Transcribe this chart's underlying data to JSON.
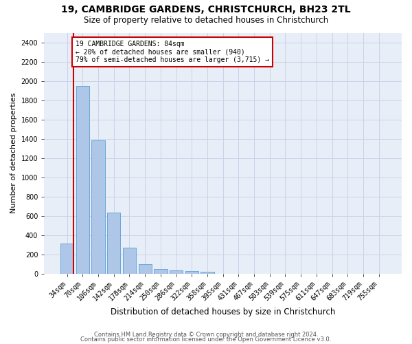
{
  "title1": "19, CAMBRIDGE GARDENS, CHRISTCHURCH, BH23 2TL",
  "title2": "Size of property relative to detached houses in Christchurch",
  "xlabel": "Distribution of detached houses by size in Christchurch",
  "ylabel": "Number of detached properties",
  "categories": [
    "34sqm",
    "70sqm",
    "106sqm",
    "142sqm",
    "178sqm",
    "214sqm",
    "250sqm",
    "286sqm",
    "322sqm",
    "358sqm",
    "395sqm",
    "431sqm",
    "467sqm",
    "503sqm",
    "539sqm",
    "575sqm",
    "611sqm",
    "647sqm",
    "683sqm",
    "719sqm",
    "755sqm"
  ],
  "values": [
    315,
    1950,
    1380,
    630,
    270,
    100,
    48,
    35,
    28,
    20,
    0,
    0,
    0,
    0,
    0,
    0,
    0,
    0,
    0,
    0,
    0
  ],
  "bar_color": "#aec6e8",
  "bar_edge_color": "#5a9fd4",
  "line_color": "#cc0000",
  "annotation_text": "19 CAMBRIDGE GARDENS: 84sqm\n← 20% of detached houses are smaller (940)\n79% of semi-detached houses are larger (3,715) →",
  "annotation_box_facecolor": "#ffffff",
  "annotation_box_edgecolor": "#cc0000",
  "annotation_text_color": "#000000",
  "ylim": [
    0,
    2500
  ],
  "yticks": [
    0,
    200,
    400,
    600,
    800,
    1000,
    1200,
    1400,
    1600,
    1800,
    2000,
    2200,
    2400
  ],
  "grid_color": "#c8d4e8",
  "background_color": "#e8eef8",
  "title1_fontsize": 10,
  "title2_fontsize": 8.5,
  "ylabel_fontsize": 8,
  "xlabel_fontsize": 8.5,
  "tick_fontsize": 7,
  "footer1": "Contains HM Land Registry data © Crown copyright and database right 2024.",
  "footer2": "Contains public sector information licensed under the Open Government Licence v3.0.",
  "footer_fontsize": 6
}
